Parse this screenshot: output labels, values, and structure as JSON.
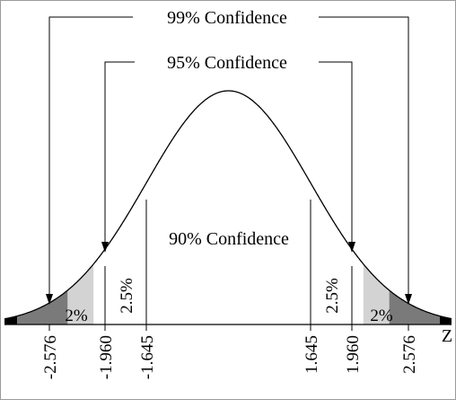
{
  "labels": {
    "conf99": "99% Confidence",
    "conf95": "95% Confidence",
    "conf90": "90% Confidence",
    "axis_z": "Z"
  },
  "tails": {
    "left_two_percent": "2%",
    "left_two_five_percent": "2.5%",
    "right_two_five_percent": "2.5%",
    "right_two_percent": "2%"
  },
  "ticks": [
    "-2.576",
    "-1.960",
    "-1.645",
    "1.645",
    "1.960",
    "2.576"
  ],
  "z_values": [
    -2.576,
    -1.96,
    -1.645,
    1.645,
    1.96,
    2.576
  ],
  "colors": {
    "outer_tail": "#000000",
    "middle_tail": "#7a7a7a",
    "inner_tail": "#d3d3d3",
    "curve": "#000000"
  }
}
